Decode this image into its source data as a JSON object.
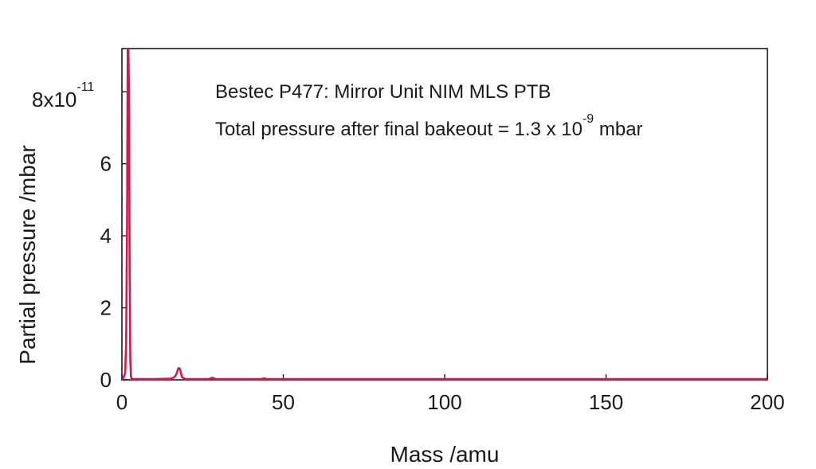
{
  "chart_data": {
    "type": "line",
    "title": "",
    "xlabel": "Mass /amu",
    "ylabel": "Partial pressure /mbar",
    "xlim": [
      0,
      200
    ],
    "ylim": [
      0,
      9.2
    ],
    "y_scale_factor": "x10",
    "y_scale_exponent": "-11",
    "x_ticks": [
      0,
      50,
      100,
      150,
      200
    ],
    "y_ticks": [
      0,
      2,
      4,
      6,
      8
    ],
    "x_tick_labels": [
      "0",
      "50",
      "100",
      "150",
      "200"
    ],
    "y_tick_labels": [
      "0",
      "2",
      "4",
      "6",
      "8"
    ],
    "grid": false,
    "legend": "none",
    "annotations": [
      {
        "text": "Bestec P477: Mirror Unit NIM MLS PTB"
      },
      {
        "text": "Total pressure after final bakeout = 1.3 x 10",
        "superscript": "-9",
        "suffix": " mbar"
      }
    ],
    "series": [
      {
        "color": "#d6174a",
        "x": [
          0,
          0.5,
          1.0,
          1.3,
          1.6,
          1.8,
          2.0,
          2.2,
          2.4,
          2.6,
          2.8,
          3.0,
          3.5,
          5,
          10,
          15,
          16,
          16.5,
          17,
          17.3,
          17.6,
          18,
          18.3,
          18.6,
          19,
          19.5,
          20,
          25,
          27,
          28,
          29,
          30,
          40,
          43,
          44,
          45,
          50,
          100,
          150,
          200
        ],
        "y": [
          0,
          0.05,
          0.2,
          1.0,
          4.5,
          9.2,
          9.2,
          8.0,
          3.0,
          0.6,
          0.1,
          0.03,
          0.02,
          0.02,
          0.02,
          0.03,
          0.06,
          0.1,
          0.18,
          0.28,
          0.33,
          0.3,
          0.18,
          0.08,
          0.05,
          0.03,
          0.02,
          0.02,
          0.02,
          0.06,
          0.02,
          0.02,
          0.02,
          0.02,
          0.04,
          0.02,
          0.02,
          0.02,
          0.02,
          0.02
        ]
      }
    ]
  }
}
